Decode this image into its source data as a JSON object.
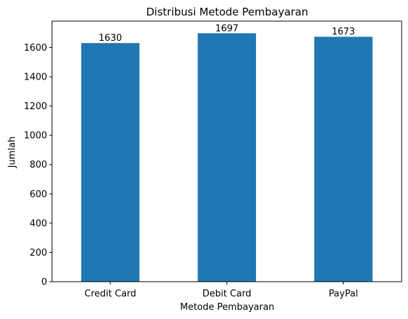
{
  "chart_data": {
    "type": "bar",
    "title": "Distribusi Metode Pembayaran",
    "xlabel": "Metode Pembayaran",
    "ylabel": "Jumlah",
    "categories": [
      "Credit Card",
      "Debit Card",
      "PayPal"
    ],
    "values": [
      1630,
      1697,
      1673
    ],
    "data_labels": [
      "1630",
      "1697",
      "1673"
    ],
    "ylim": [
      0,
      1780
    ],
    "yticks": [
      0,
      200,
      400,
      600,
      800,
      1000,
      1200,
      1400,
      1600
    ],
    "grid": false,
    "legend": "none",
    "bar_color": "#1f77b4"
  }
}
